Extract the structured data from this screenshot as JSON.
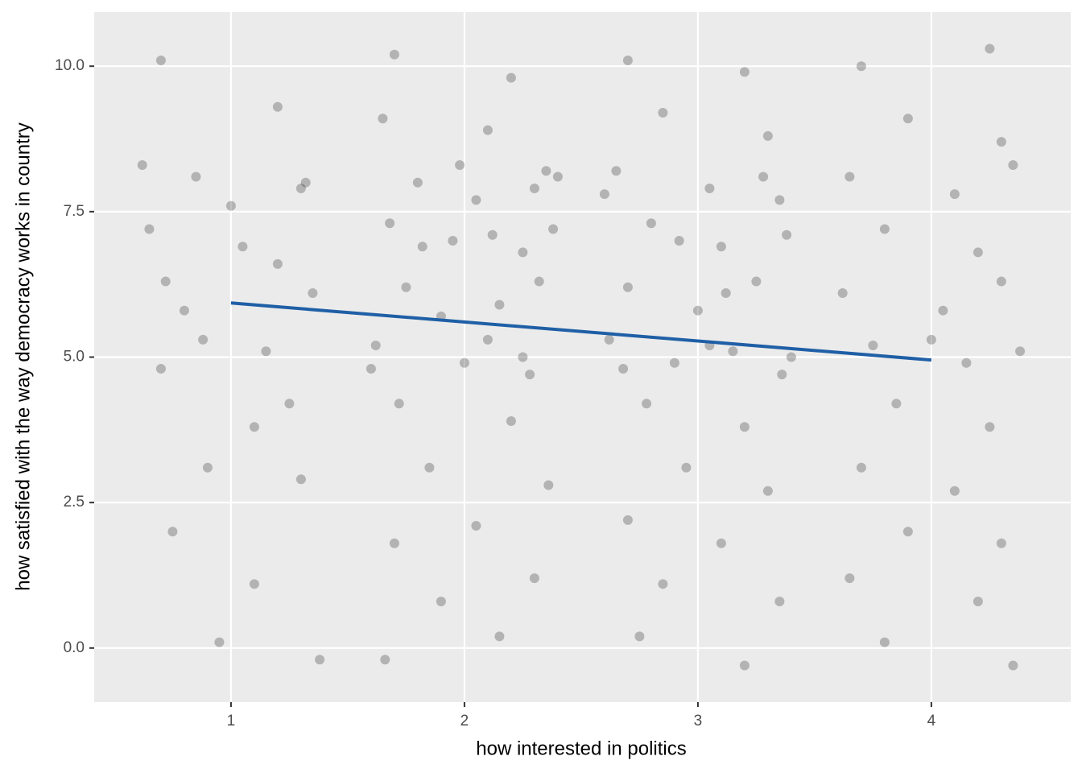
{
  "chart_data": {
    "type": "scatter",
    "x_label": "how interested in politics",
    "y_label": "how satisfied with the way democracy works in country",
    "xlim": [
      0.414,
      4.597
    ],
    "ylim": [
      -0.93,
      10.93
    ],
    "xticks": [
      1,
      2,
      3,
      4
    ],
    "yticks": [
      {
        "value": 0,
        "label": "0.0"
      },
      {
        "value": 2.5,
        "label": "2.5"
      },
      {
        "value": 5,
        "label": "5.0"
      },
      {
        "value": 7.5,
        "label": "7.5"
      },
      {
        "value": 10,
        "label": "10.0"
      }
    ],
    "grid": true,
    "points": {
      "color": "#333333",
      "x": [
        0.7,
        1.2,
        0.85,
        1.3,
        0.65,
        1.05,
        1.35,
        0.8,
        1.15,
        0.7,
        1.25,
        0.9,
        1.3,
        0.75,
        1.1,
        0.95,
        1.38,
        0.62,
        1.0,
        1.2,
        0.88,
        1.32,
        0.72,
        1.1,
        1.7,
        2.2,
        1.65,
        2.1,
        2.35,
        1.8,
        2.05,
        2.3,
        1.68,
        1.95,
        2.25,
        2.38,
        1.75,
        2.15,
        2.32,
        1.9,
        1.62,
        2.0,
        2.28,
        2.1,
        1.72,
        2.2,
        1.85,
        2.36,
        2.05,
        1.7,
        2.3,
        1.9,
        2.15,
        1.66,
        2.4,
        1.82,
        2.12,
        1.6,
        2.25,
        1.98,
        2.7,
        3.2,
        2.85,
        3.3,
        2.65,
        3.05,
        3.35,
        2.8,
        3.1,
        3.38,
        2.7,
        3.0,
        3.25,
        2.62,
        2.9,
        3.15,
        3.36,
        2.78,
        3.2,
        2.95,
        3.3,
        2.7,
        3.1,
        2.85,
        3.35,
        2.75,
        3.2,
        3.05,
        2.68,
        3.28,
        2.92,
        3.12,
        2.6,
        3.4,
        3.7,
        4.25,
        3.9,
        4.3,
        3.65,
        4.1,
        4.35,
        3.8,
        4.2,
        3.62,
        4.05,
        4.3,
        3.75,
        4.15,
        4.38,
        3.85,
        4.25,
        3.7,
        4.1,
        3.9,
        4.3,
        3.65,
        4.2,
        3.8,
        4.35,
        4.0
      ],
      "y": [
        10.1,
        9.3,
        8.1,
        7.9,
        7.2,
        6.9,
        6.1,
        5.8,
        5.1,
        4.8,
        4.2,
        3.1,
        2.9,
        2.0,
        1.1,
        0.1,
        -0.2,
        8.3,
        7.6,
        6.6,
        5.3,
        8.0,
        6.3,
        3.8,
        10.2,
        9.8,
        9.1,
        8.9,
        8.2,
        8.0,
        7.7,
        7.9,
        7.3,
        7.0,
        6.8,
        7.2,
        6.2,
        5.9,
        6.3,
        5.7,
        5.2,
        4.9,
        4.7,
        5.3,
        4.2,
        3.9,
        3.1,
        2.8,
        2.1,
        1.8,
        1.2,
        0.8,
        0.2,
        -0.2,
        8.1,
        6.9,
        7.1,
        4.8,
        5.0,
        8.3,
        10.1,
        9.9,
        9.2,
        8.8,
        8.2,
        7.9,
        7.7,
        7.3,
        6.9,
        7.1,
        6.2,
        5.8,
        6.3,
        5.3,
        4.9,
        5.1,
        4.7,
        4.2,
        3.8,
        3.1,
        2.7,
        2.2,
        1.8,
        1.1,
        0.8,
        0.2,
        -0.3,
        5.2,
        4.8,
        8.1,
        7.0,
        6.1,
        7.8,
        5.0,
        10.0,
        10.3,
        9.1,
        8.7,
        8.1,
        7.8,
        8.3,
        7.2,
        6.8,
        6.1,
        5.8,
        6.3,
        5.2,
        4.9,
        5.1,
        4.2,
        3.8,
        3.1,
        2.7,
        2.0,
        1.8,
        1.2,
        0.8,
        0.1,
        -0.3,
        5.3
      ]
    },
    "fit_line": {
      "color": "#1f5fa6",
      "x": [
        1,
        4
      ],
      "y": [
        5.93,
        4.95
      ]
    }
  }
}
